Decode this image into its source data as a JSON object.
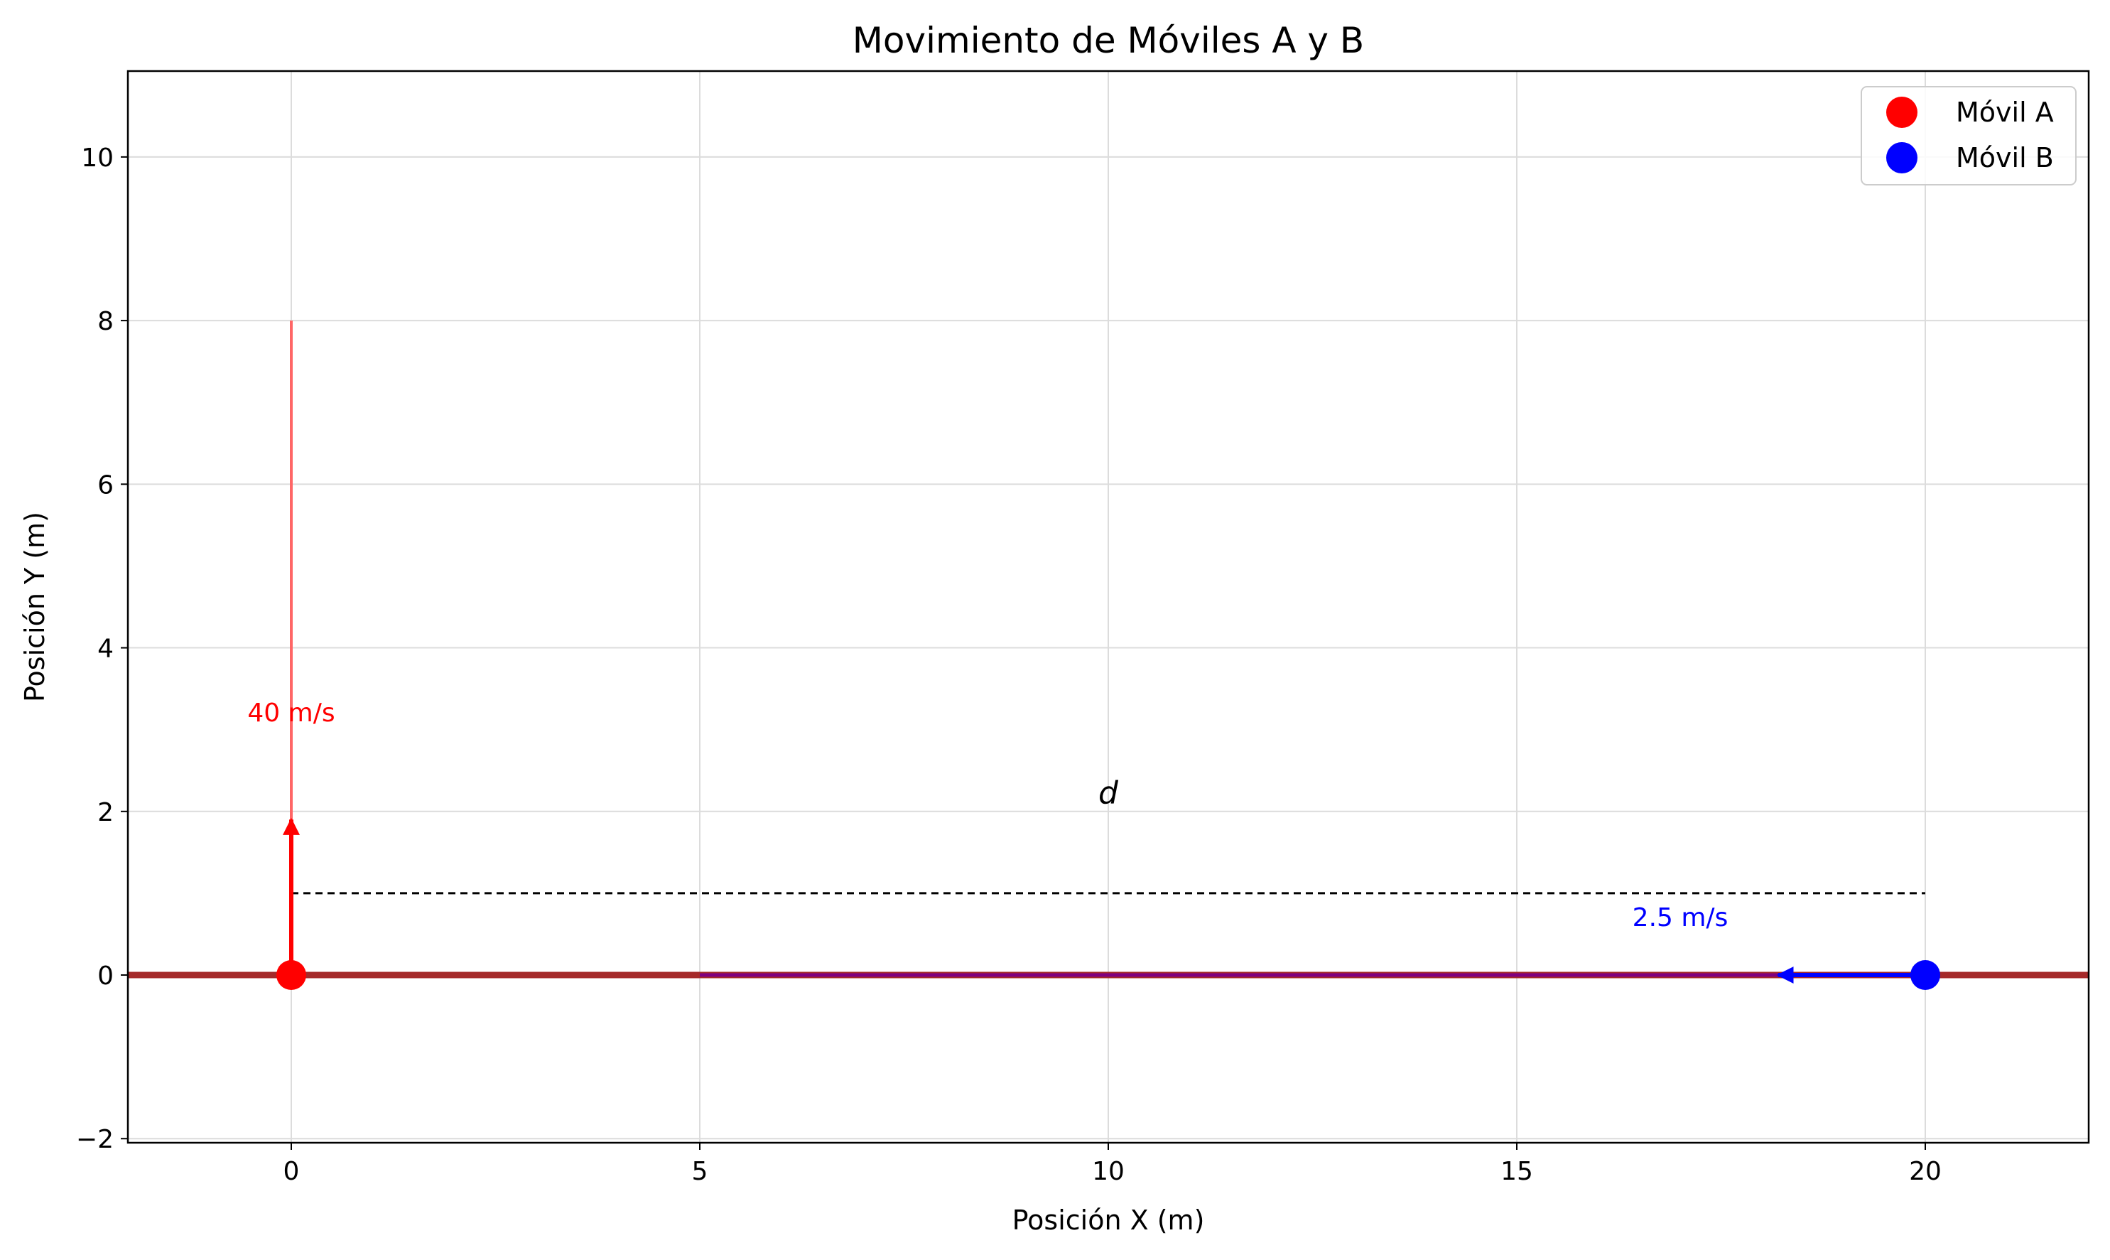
{
  "chart_data": {
    "type": "scatter",
    "title": "Movimiento de Móviles A y B",
    "xlabel": "Posición X (m)",
    "ylabel": "Posición Y (m)",
    "xlim": [
      -2,
      22
    ],
    "ylim": [
      -2.05,
      11.05
    ],
    "xticks": [
      0,
      5,
      10,
      15,
      20
    ],
    "yticks": [
      -2,
      0,
      2,
      4,
      6,
      8,
      10
    ],
    "grid": true,
    "legend_position": "top-right",
    "series": [
      {
        "name": "Móvil A",
        "color": "#ff0000",
        "points": [
          {
            "x": 0,
            "y": 0
          }
        ]
      },
      {
        "name": "Móvil B",
        "color": "#0000ff",
        "points": [
          {
            "x": 20,
            "y": 0
          }
        ]
      }
    ],
    "ground_line": {
      "y": 0,
      "x_range": [
        -2,
        22
      ],
      "color": "#a52a2a"
    },
    "floor_segment": {
      "y": 0,
      "x_range": [
        5,
        18.3
      ],
      "color": "#800080"
    },
    "trajectory_A": {
      "x": 0,
      "y_range": [
        0,
        8
      ],
      "color": "#ff6666"
    },
    "velocity_arrows": [
      {
        "from": [
          0,
          0
        ],
        "to": [
          0,
          1.9
        ],
        "color": "#ff0000"
      },
      {
        "from": [
          20,
          0
        ],
        "to": [
          18.2,
          0
        ],
        "color": "#0000ff"
      }
    ],
    "distance_line": {
      "from": [
        0,
        1
      ],
      "to": [
        20,
        1
      ],
      "style": "dashed",
      "color": "#000000"
    },
    "annotations": [
      {
        "id": "velocity-a-label",
        "text": "40 m/s",
        "x": 0,
        "y": 3.1,
        "color": "#ff0000"
      },
      {
        "id": "velocity-b-label",
        "text": "2.5 m/s",
        "x": 17,
        "y": 0.6,
        "color": "#0000ff"
      },
      {
        "id": "distance-label",
        "text": "d",
        "x": 10,
        "y": 2.1,
        "color": "#000000"
      }
    ]
  }
}
